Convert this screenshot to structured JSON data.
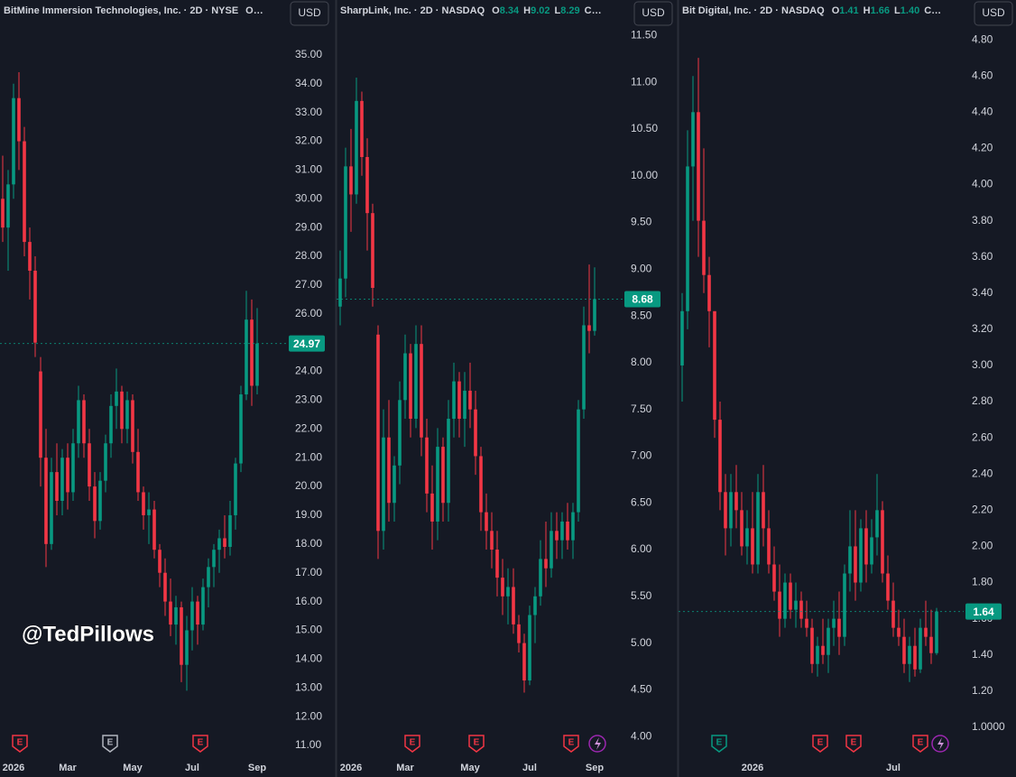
{
  "chart_data": [
    {
      "type": "candlestick",
      "title": "BitMine Immersion Technologies, Inc. · 2D · NYSE",
      "readout": [],
      "readout_more": "O…",
      "currency": "USD",
      "up_color": "#089981",
      "down_color": "#f23645",
      "last_price": 24.97,
      "categories": [
        null,
        null,
        "2026",
        null,
        null,
        null,
        null,
        null,
        null,
        null,
        null,
        null,
        "Mar",
        null,
        null,
        null,
        null,
        null,
        null,
        null,
        null,
        null,
        null,
        null,
        "May",
        null,
        null,
        null,
        null,
        null,
        null,
        null,
        null,
        null,
        null,
        "Jul",
        null,
        null,
        null,
        null,
        null,
        null,
        null,
        null,
        null,
        null,
        null,
        "Sep"
      ],
      "open": [
        30,
        29,
        30.5,
        33.5,
        32,
        28.5,
        27.5,
        24,
        21,
        18,
        20.5,
        19.5,
        21,
        19.8,
        21.5,
        23,
        21.5,
        20,
        18.8,
        20.2,
        21.5,
        22.8,
        23.3,
        22,
        23,
        21.2,
        19.8,
        19,
        19.2,
        17.8,
        17,
        16,
        15.2,
        15.8,
        13.8,
        15,
        16,
        15.2,
        16.5,
        17.2,
        17.8,
        18.2,
        17.9,
        19,
        20.8,
        23.2,
        25.8,
        23.5
      ],
      "high": [
        31.5,
        31,
        34,
        34.4,
        32.5,
        29,
        28,
        24.5,
        22,
        21,
        21.5,
        21.3,
        21.5,
        22,
        23.5,
        23.2,
        22,
        20.5,
        20.5,
        21.8,
        23.2,
        24.1,
        23.5,
        23.3,
        23.2,
        22,
        20,
        19.8,
        19.5,
        18,
        17.5,
        16.8,
        16.2,
        16,
        15.5,
        16.5,
        16.2,
        16.8,
        17.5,
        18,
        18.5,
        19,
        19.5,
        21,
        23.5,
        26.8,
        26.5,
        26.2
      ],
      "low": [
        28.5,
        27.5,
        30,
        31,
        28,
        26.5,
        24.5,
        20,
        17.2,
        17.8,
        19,
        19,
        19.2,
        19.5,
        21,
        21,
        19.5,
        18.2,
        18.5,
        19.8,
        21,
        22,
        21.5,
        21.5,
        20.8,
        19.5,
        18.5,
        18,
        17.5,
        16.5,
        15.5,
        14.8,
        14.5,
        13.2,
        12.9,
        14.3,
        14.5,
        15,
        15.8,
        16.5,
        17,
        17.5,
        17.6,
        18.5,
        20.5,
        23,
        22.8,
        23.2
      ],
      "close": [
        29,
        30.5,
        33.5,
        32,
        28.5,
        27.5,
        25,
        21,
        18,
        20.5,
        19.5,
        21,
        19.8,
        21.5,
        23,
        21.5,
        20,
        18.8,
        20.2,
        21.5,
        22.8,
        23.3,
        22,
        23,
        21.2,
        19.8,
        19,
        19.2,
        17.8,
        17,
        16,
        15.2,
        15.8,
        13.8,
        15,
        16,
        15.2,
        16.5,
        17.2,
        17.8,
        18.2,
        17.9,
        19,
        20.8,
        23.2,
        25.8,
        23.5,
        24.97
      ],
      "ylim": [
        10.56,
        36.91
      ],
      "yticks": [
        {
          "value": 11,
          "label": "11.00"
        },
        {
          "value": 12,
          "label": "12.00"
        },
        {
          "value": 13,
          "label": "13.00"
        },
        {
          "value": 14,
          "label": "14.00"
        },
        {
          "value": 15,
          "label": "15.00"
        },
        {
          "value": 16,
          "label": "16.00"
        },
        {
          "value": 17,
          "label": "17.00"
        },
        {
          "value": 18,
          "label": "18.00"
        },
        {
          "value": 19,
          "label": "19.00"
        },
        {
          "value": 20,
          "label": "20.00"
        },
        {
          "value": 21,
          "label": "21.00"
        },
        {
          "value": 22,
          "label": "22.00"
        },
        {
          "value": 23,
          "label": "23.00"
        },
        {
          "value": 24,
          "label": "24.00"
        },
        {
          "value": 25,
          "label": "25.00"
        },
        {
          "value": 26,
          "label": "26.00"
        },
        {
          "value": 27,
          "label": "27.00"
        },
        {
          "value": 28,
          "label": "28.00"
        },
        {
          "value": 29,
          "label": "29.00"
        },
        {
          "value": 30,
          "label": "30.00"
        },
        {
          "value": 31,
          "label": "31.00"
        },
        {
          "value": 32,
          "label": "32.00"
        },
        {
          "value": 33,
          "label": "33.00"
        },
        {
          "value": 34,
          "label": "34.00"
        },
        {
          "value": 35,
          "label": "35.00"
        }
      ],
      "events": [
        {
          "label": "E",
          "color": "#f23645"
        },
        {
          "label": "E",
          "color": "#b2b5be"
        },
        {
          "label": "E",
          "color": "#f23645"
        }
      ]
    },
    {
      "type": "candlestick",
      "title": "SharpLink, Inc. · 2D · NASDAQ",
      "readout": [
        {
          "key": "O",
          "value": "8.34"
        },
        {
          "key": "H",
          "value": "9.02"
        },
        {
          "key": "L",
          "value": "8.29"
        }
      ],
      "readout_more": "C…",
      "currency": "USD",
      "up_color": "#089981",
      "down_color": "#f23645",
      "last_price": 8.68,
      "categories": [
        null,
        null,
        "2026",
        null,
        null,
        null,
        null,
        null,
        null,
        null,
        null,
        null,
        "Mar",
        null,
        null,
        null,
        null,
        null,
        null,
        null,
        null,
        null,
        null,
        null,
        "May",
        null,
        null,
        null,
        null,
        null,
        null,
        null,
        null,
        null,
        null,
        "Jul",
        null,
        null,
        null,
        null,
        null,
        null,
        null,
        null,
        null,
        null,
        null,
        "Sep"
      ],
      "open": [
        8.6,
        8.9,
        10.1,
        9.8,
        10.8,
        10.2,
        9.6,
        8.3,
        6.2,
        7.2,
        6.5,
        6.9,
        7.6,
        8.1,
        7.4,
        8.2,
        7.2,
        6.6,
        6.3,
        7.1,
        6.5,
        7.4,
        7.8,
        7.4,
        7.7,
        7.5,
        7.0,
        6.4,
        6.2,
        6.0,
        5.7,
        5.5,
        5.6,
        5.2,
        5.0,
        4.6,
        5.3,
        5.5,
        5.9,
        5.8,
        6.2,
        6.1,
        6.3,
        6.1,
        6.4,
        7.5,
        8.4,
        8.34
      ],
      "high": [
        9.2,
        10.3,
        10.5,
        11.05,
        10.9,
        10.4,
        9.7,
        8.4,
        7.5,
        7.6,
        7.0,
        7.8,
        8.3,
        8.2,
        8.4,
        8.4,
        7.4,
        6.9,
        7.3,
        7.2,
        7.6,
        8.0,
        7.9,
        7.9,
        8.0,
        7.7,
        7.1,
        6.6,
        6.4,
        6.2,
        5.9,
        5.8,
        5.8,
        5.3,
        5.1,
        5.4,
        5.6,
        6.1,
        6.3,
        6.4,
        6.4,
        6.4,
        6.5,
        6.5,
        7.6,
        8.6,
        9.05,
        9.02
      ],
      "low": [
        8.4,
        8.7,
        9.4,
        9.7,
        10,
        9.2,
        8.6,
        5.9,
        6.0,
        6.3,
        6.3,
        6.7,
        7.4,
        7.2,
        7.3,
        7.0,
        6.4,
        6.0,
        6.1,
        6.3,
        6.3,
        7.2,
        7.2,
        7.1,
        7.3,
        6.8,
        6.2,
        6.0,
        5.8,
        5.5,
        5.3,
        5.2,
        5.1,
        4.9,
        4.47,
        4.55,
        5.0,
        5.4,
        5.6,
        5.7,
        5.9,
        5.9,
        6.0,
        5.9,
        6.3,
        7.4,
        8.1,
        8.29
      ],
      "close": [
        8.9,
        10.1,
        9.8,
        10.8,
        10.2,
        9.6,
        8.8,
        6.2,
        7.2,
        6.5,
        6.9,
        7.6,
        8.1,
        7.4,
        8.2,
        7.2,
        6.6,
        6.3,
        7.1,
        6.5,
        7.4,
        7.8,
        7.4,
        7.7,
        7.5,
        7.0,
        6.4,
        6.2,
        6.0,
        5.7,
        5.5,
        5.6,
        5.2,
        5.0,
        4.6,
        5.3,
        5.5,
        5.9,
        5.8,
        6.2,
        6.1,
        6.3,
        6.1,
        6.4,
        7.5,
        8.4,
        8.34,
        8.68
      ],
      "ylim": [
        3.77,
        11.88
      ],
      "yticks": [
        {
          "value": 4,
          "label": "4.00"
        },
        {
          "value": 4.5,
          "label": "4.50"
        },
        {
          "value": 5,
          "label": "5.00"
        },
        {
          "value": 5.5,
          "label": "5.50"
        },
        {
          "value": 6,
          "label": "6.00"
        },
        {
          "value": 6.5,
          "label": "6.50"
        },
        {
          "value": 7,
          "label": "7.00"
        },
        {
          "value": 7.5,
          "label": "7.50"
        },
        {
          "value": 8,
          "label": "8.00"
        },
        {
          "value": 8.5,
          "label": "8.50"
        },
        {
          "value": 9,
          "label": "9.00"
        },
        {
          "value": 9.5,
          "label": "9.50"
        },
        {
          "value": 10,
          "label": "10.00"
        },
        {
          "value": 10.5,
          "label": "10.50"
        },
        {
          "value": 11,
          "label": "11.00"
        },
        {
          "value": 11.5,
          "label": "11.50"
        }
      ],
      "events": [
        {
          "label": "E",
          "color": "#f23645"
        },
        {
          "label": "E",
          "color": "#f23645"
        },
        {
          "label": "E",
          "color": "#f23645"
        }
      ]
    },
    {
      "type": "candlestick",
      "title": "Bit Digital, Inc. · 2D · NASDAQ",
      "readout": [
        {
          "key": "O",
          "value": "1.41"
        },
        {
          "key": "H",
          "value": "1.66"
        },
        {
          "key": "L",
          "value": "1.40"
        }
      ],
      "readout_more": "C…",
      "currency": "USD",
      "up_color": "#089981",
      "down_color": "#f23645",
      "last_price": 1.64,
      "categories": [
        null,
        null,
        null,
        null,
        null,
        null,
        null,
        null,
        null,
        null,
        null,
        null,
        null,
        "2026",
        null,
        null,
        null,
        null,
        null,
        null,
        null,
        null,
        null,
        null,
        null,
        null,
        null,
        null,
        null,
        null,
        null,
        null,
        null,
        null,
        null,
        null,
        null,
        null,
        null,
        "Jul",
        null,
        null,
        null,
        null,
        null,
        null,
        null,
        null
      ],
      "open": [
        3.0,
        3.3,
        4.1,
        4.4,
        3.8,
        3.5,
        3.3,
        2.7,
        2.3,
        2.1,
        2.3,
        2.2,
        2.0,
        2.1,
        1.9,
        2.3,
        2.1,
        1.9,
        1.75,
        1.6,
        1.8,
        1.65,
        1.7,
        1.6,
        1.55,
        1.35,
        1.45,
        1.4,
        1.55,
        1.6,
        1.5,
        1.85,
        2.0,
        1.8,
        2.1,
        1.9,
        2.05,
        2.2,
        1.85,
        1.7,
        1.55,
        1.5,
        1.35,
        1.45,
        1.32,
        1.55,
        1.5,
        1.41
      ],
      "high": [
        3.4,
        4.3,
        4.6,
        4.7,
        4.2,
        3.6,
        3.3,
        2.8,
        2.4,
        2.4,
        2.45,
        2.3,
        2.2,
        2.3,
        2.4,
        2.45,
        2.2,
        2.0,
        1.9,
        1.85,
        1.85,
        1.8,
        1.75,
        1.7,
        1.6,
        1.5,
        1.6,
        1.6,
        1.7,
        1.75,
        1.9,
        2.2,
        2.2,
        2.15,
        2.2,
        2.15,
        2.4,
        2.25,
        1.95,
        1.8,
        1.65,
        1.6,
        1.5,
        1.55,
        1.6,
        1.7,
        1.65,
        1.66
      ],
      "low": [
        2.8,
        3.2,
        3.8,
        3.6,
        3.4,
        3.1,
        2.6,
        2.2,
        1.95,
        2.0,
        2.1,
        1.95,
        1.9,
        1.85,
        1.85,
        2.0,
        1.85,
        1.7,
        1.5,
        1.55,
        1.6,
        1.55,
        1.55,
        1.5,
        1.3,
        1.28,
        1.35,
        1.3,
        1.45,
        1.4,
        1.45,
        1.75,
        1.7,
        1.75,
        1.8,
        1.85,
        1.95,
        1.8,
        1.65,
        1.5,
        1.45,
        1.3,
        1.25,
        1.28,
        1.3,
        1.45,
        1.35,
        1.4
      ],
      "close": [
        3.3,
        4.1,
        4.4,
        3.8,
        3.5,
        3.3,
        2.7,
        2.3,
        2.1,
        2.3,
        2.2,
        2.0,
        2.1,
        1.9,
        2.3,
        2.1,
        1.9,
        1.75,
        1.6,
        1.8,
        1.65,
        1.7,
        1.6,
        1.55,
        1.35,
        1.45,
        1.4,
        1.55,
        1.6,
        1.5,
        1.85,
        2.0,
        1.8,
        2.1,
        1.9,
        2.05,
        2.2,
        1.85,
        1.7,
        1.55,
        1.5,
        1.35,
        1.45,
        1.32,
        1.55,
        1.5,
        1.41,
        1.64
      ],
      "ylim": [
        0.83,
        5.02
      ],
      "yticks": [
        {
          "value": 1,
          "label": "1.0000"
        },
        {
          "value": 1.2,
          "label": "1.20"
        },
        {
          "value": 1.4,
          "label": "1.40"
        },
        {
          "value": 1.6,
          "label": "1.60"
        },
        {
          "value": 1.8,
          "label": "1.80"
        },
        {
          "value": 2,
          "label": "2.00"
        },
        {
          "value": 2.2,
          "label": "2.20"
        },
        {
          "value": 2.4,
          "label": "2.40"
        },
        {
          "value": 2.6,
          "label": "2.60"
        },
        {
          "value": 2.8,
          "label": "2.80"
        },
        {
          "value": 3,
          "label": "3.00"
        },
        {
          "value": 3.2,
          "label": "3.20"
        },
        {
          "value": 3.4,
          "label": "3.40"
        },
        {
          "value": 3.6,
          "label": "3.60"
        },
        {
          "value": 3.8,
          "label": "3.80"
        },
        {
          "value": 4,
          "label": "4.00"
        },
        {
          "value": 4.2,
          "label": "4.20"
        },
        {
          "value": 4.4,
          "label": "4.40"
        },
        {
          "value": 4.6,
          "label": "4.60"
        },
        {
          "value": 4.8,
          "label": "4.80"
        }
      ],
      "events": [
        {
          "label": "E",
          "color": "#089981"
        },
        {
          "label": "E",
          "color": "#f23645"
        },
        {
          "label": "E",
          "color": "#f23645"
        },
        {
          "label": "E",
          "color": "#f23645"
        }
      ]
    }
  ],
  "watermark": "@TedPillows"
}
